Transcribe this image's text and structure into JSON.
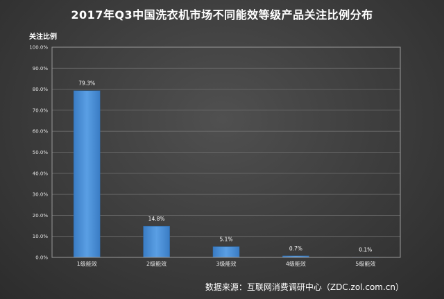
{
  "chart_data": {
    "type": "bar",
    "title": "2017年Q3中国洗衣机市场不同能效等级产品关注比例分布",
    "ylabel": "关注比例",
    "xlabel": "",
    "categories": [
      "1级能效",
      "2级能效",
      "3级能效",
      "4级能效",
      "5级能效"
    ],
    "values": [
      79.3,
      14.8,
      5.1,
      0.7,
      0.1
    ],
    "data_labels": [
      "79.3%",
      "14.8%",
      "5.1%",
      "0.7%",
      "0.1%"
    ],
    "ylim": [
      0,
      100
    ],
    "yticks": [
      "0.0%",
      "10.0%",
      "20.0%",
      "30.0%",
      "40.0%",
      "50.0%",
      "60.0%",
      "70.0%",
      "80.0%",
      "90.0%",
      "100.0%"
    ],
    "grid": true,
    "bar_color": "#4a8fd6"
  },
  "source": "数据来源：互联网消费调研中心（ZDC.zol.com.cn）"
}
